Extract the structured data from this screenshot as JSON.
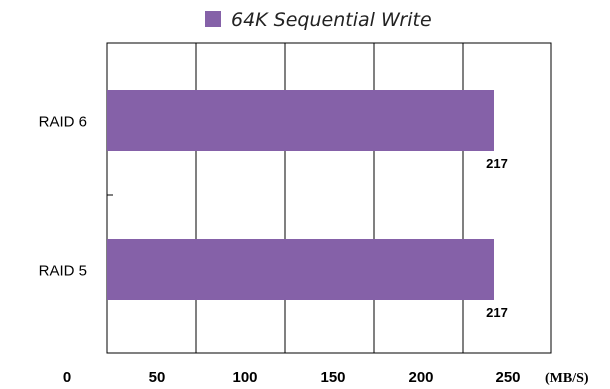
{
  "chart_data": {
    "type": "bar",
    "orientation": "horizontal",
    "categories": [
      "RAID 6",
      "RAID 5"
    ],
    "series": [
      {
        "name": "64K Sequential Write",
        "values": [
          217,
          217
        ],
        "color": "#8561a8"
      }
    ],
    "data_labels": [
      "217",
      "217"
    ],
    "x_ticks": [
      "0",
      "50",
      "100",
      "150",
      "200",
      "250"
    ],
    "x_unit": "(MB/S)",
    "xlim": [
      0,
      250
    ],
    "grid": true,
    "legend_position": "top"
  }
}
